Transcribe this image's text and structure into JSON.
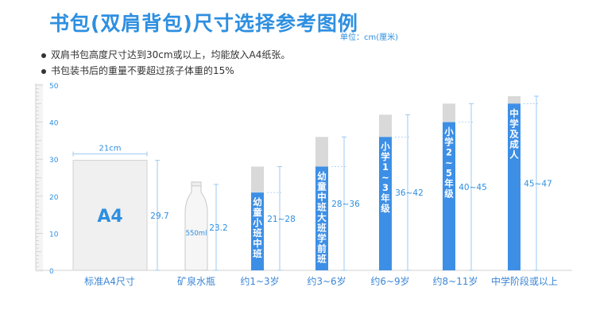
{
  "title": "书包(双肩背包)尺寸选择参考图例",
  "unit": "单位：cm(厘米)",
  "notes": [
    "双肩书包高度尺寸达到30cm或以上，均能放入A4纸张。",
    "书包装书后的重量不要超过孩子体重的15%"
  ],
  "colors": {
    "accent": "#2e8fe0",
    "bar_fill": "#3d8fe6",
    "bar_cap": "#d9d9d9",
    "dim_line": "#9ec8f0",
    "label_text": "#3b86d6",
    "ruler": "#dcdcdc"
  },
  "chart_data": {
    "type": "bar",
    "ylim": [
      0,
      50
    ],
    "yticks": [
      "0",
      "10",
      "20",
      "30",
      "40",
      "50"
    ],
    "references": [
      {
        "category": "标准A4尺寸",
        "name": "A4",
        "width_label": "21cm",
        "height": 29.7,
        "height_label": "29.7"
      },
      {
        "category": "矿泉水瓶",
        "name": "550ml",
        "height": 23.2,
        "height_label": "23.2"
      }
    ],
    "bags": [
      {
        "category": "约1~3岁",
        "label": "幼童小班 中班",
        "min": 21,
        "max": 28,
        "range_label": "21~28"
      },
      {
        "category": "约3~6岁",
        "label": "幼童中班 大班 学前班",
        "min": 28,
        "max": 36,
        "range_label": "28~36"
      },
      {
        "category": "约6~9岁",
        "label": "小学1~3年级",
        "min": 36,
        "max": 42,
        "range_label": "36~42"
      },
      {
        "category": "约8~11岁",
        "label": "小学2~5年级",
        "min": 40,
        "max": 45,
        "range_label": "40~45"
      },
      {
        "category": "中学阶段或以上",
        "label": "中学及成人",
        "min": 45,
        "max": 47,
        "range_label": "45~47"
      }
    ]
  }
}
